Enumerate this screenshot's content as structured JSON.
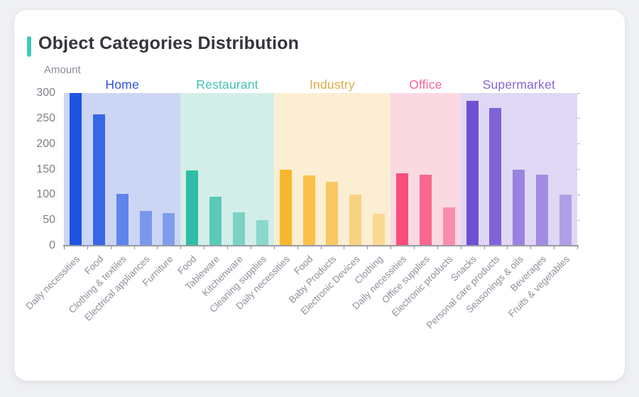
{
  "page": {
    "title": "Object Categories Distribution",
    "accent_color": "#3ec8bc",
    "background_color": "#eff0f3",
    "card_color": "#ffffff"
  },
  "chart_data": {
    "type": "bar",
    "title": "Object Categories Distribution",
    "xlabel": "",
    "ylabel": "Amount",
    "ylim": [
      0,
      300
    ],
    "yticks": [
      0,
      50,
      100,
      150,
      200,
      250,
      300
    ],
    "grid": false,
    "legend_position": "grouped-headers-top",
    "groups": [
      {
        "name": "Home",
        "label_color": "#2d4ede",
        "bar_color": "#1d53e3",
        "panel_color": "#ccd6f4",
        "bar_opacities": [
          1,
          0.85,
          0.62,
          0.48,
          0.44
        ],
        "categories": [
          "Daily necessities",
          "Food",
          "Clothing & textiles",
          "Electrical appliances",
          "Furniture"
        ],
        "values": [
          300,
          258,
          102,
          68,
          64
        ]
      },
      {
        "name": "Restaurant",
        "label_color": "#41c4af",
        "bar_color": "#2fbda6",
        "panel_color": "#d3eee8",
        "bar_opacities": [
          1,
          0.75,
          0.55,
          0.45
        ],
        "categories": [
          "Food",
          "Tableware",
          "Kitchenware",
          "Cleaning supplies"
        ],
        "values": [
          148,
          96,
          65,
          50
        ]
      },
      {
        "name": "Industry",
        "label_color": "#e2aa44",
        "bar_color": "#f8b62c",
        "panel_color": "#fbeed2",
        "bar_opacities": [
          1,
          0.82,
          0.68,
          0.5,
          0.38
        ],
        "categories": [
          "Daily necessities",
          "Food",
          "Baby Products",
          "Electronic Devices",
          "Clothing"
        ],
        "values": [
          150,
          138,
          126,
          100,
          63
        ]
      },
      {
        "name": "Office",
        "label_color": "#f6659a",
        "bar_color": "#f94e7d",
        "panel_color": "#fbd9e3",
        "bar_opacities": [
          1,
          0.82,
          0.55
        ],
        "categories": [
          "Daily necessities",
          "Office supplies",
          "Electronic products"
        ],
        "values": [
          142,
          139,
          75
        ]
      },
      {
        "name": "Supermarket",
        "label_color": "#8566dd",
        "bar_color": "#6f4fd2",
        "panel_color": "#ded8f4",
        "bar_opacities": [
          1,
          0.85,
          0.62,
          0.55,
          0.42
        ],
        "categories": [
          "Snacks",
          "Personal care products",
          "Seasonings & oils",
          "Beverages",
          "Fruits & vegetables"
        ],
        "values": [
          285,
          271,
          150,
          140,
          101
        ]
      }
    ]
  }
}
